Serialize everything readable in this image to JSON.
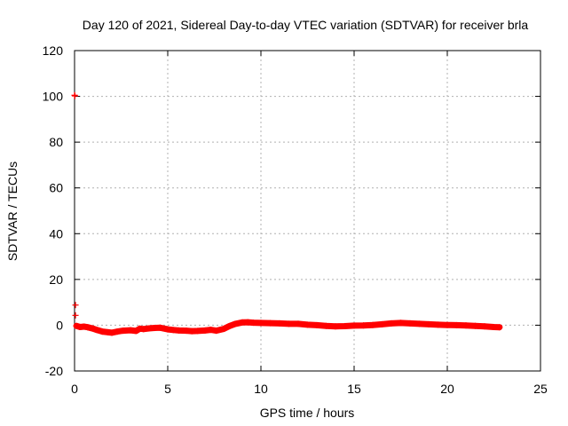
{
  "chart_data": {
    "type": "scatter",
    "title": "Day 120 of 2021, Sidereal Day-to-day VTEC variation (SDTVAR) for receiver brla",
    "xlabel": "GPS time / hours",
    "ylabel": "SDTVAR / TECUs",
    "xlim": [
      0,
      25
    ],
    "ylim": [
      -20,
      120
    ],
    "xticks": [
      "0",
      "5",
      "10",
      "15",
      "20",
      "25"
    ],
    "yticks": [
      "-20",
      "0",
      "20",
      "40",
      "60",
      "80",
      "100",
      "120"
    ],
    "xtick_values": [
      0,
      5,
      10,
      15,
      20,
      25
    ],
    "ytick_values": [
      -20,
      0,
      20,
      40,
      60,
      80,
      100,
      120
    ],
    "grid": true,
    "marker": "+",
    "color": "#ff0000",
    "series": [
      {
        "name": "SDTVAR",
        "x": [
          0.0,
          0.02,
          0.05,
          0.05,
          0.1,
          0.3,
          0.5,
          0.7,
          1.0,
          1.2,
          1.5,
          1.8,
          2.0,
          2.3,
          2.6,
          3.0,
          3.3,
          3.5,
          3.7,
          4.0,
          4.3,
          4.6,
          5.0,
          5.3,
          5.6,
          6.0,
          6.3,
          6.6,
          7.0,
          7.3,
          7.6,
          8.0,
          8.3,
          8.6,
          9.0,
          9.3,
          9.6,
          10.0,
          10.5,
          11.0,
          11.5,
          12.0,
          12.5,
          13.0,
          13.5,
          14.0,
          14.5,
          15.0,
          15.5,
          16.0,
          16.5,
          17.0,
          17.5,
          18.0,
          18.5,
          19.0,
          19.5,
          20.0,
          20.5,
          21.0,
          21.5,
          22.0,
          22.5,
          22.8
        ],
        "y": [
          100.5,
          100.2,
          8.8,
          4.3,
          -0.3,
          -0.8,
          -0.6,
          -0.9,
          -1.5,
          -2.1,
          -2.8,
          -3.1,
          -3.3,
          -2.8,
          -2.4,
          -2.2,
          -2.5,
          -1.5,
          -1.7,
          -1.4,
          -1.2,
          -1.1,
          -1.8,
          -2.1,
          -2.3,
          -2.4,
          -2.6,
          -2.5,
          -2.3,
          -2.0,
          -2.4,
          -1.6,
          -0.4,
          0.5,
          1.2,
          1.3,
          1.1,
          1.0,
          0.9,
          0.8,
          0.6,
          0.6,
          0.2,
          0.0,
          -0.3,
          -0.5,
          -0.4,
          -0.2,
          -0.1,
          0.1,
          0.4,
          0.8,
          1.0,
          0.8,
          0.6,
          0.4,
          0.2,
          0.1,
          0.0,
          -0.1,
          -0.3,
          -0.5,
          -0.8,
          -0.9
        ]
      }
    ]
  }
}
